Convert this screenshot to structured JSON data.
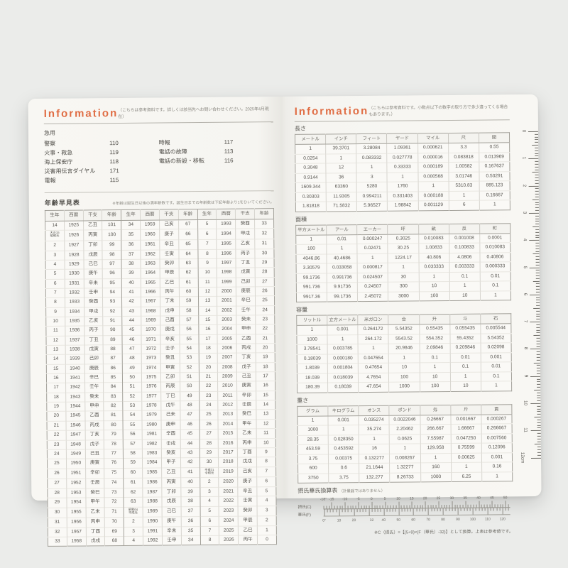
{
  "left_page": {
    "header": {
      "title": "Information",
      "note": "（こちらは参考資料です。詳しくは該当先へお問い合わせください。2025年4月現在）"
    },
    "emergency": {
      "title": "急用",
      "col1": [
        {
          "label": "警察",
          "number": "110"
        },
        {
          "label": "火事・救急",
          "number": "119"
        },
        {
          "label": "海上保安庁",
          "number": "118"
        },
        {
          "label": "災害用伝言ダイヤル",
          "number": "171"
        },
        {
          "label": "電報",
          "number": "115"
        }
      ],
      "col2": [
        {
          "label": "時報",
          "number": "117"
        },
        {
          "label": "電話の故障",
          "number": "113"
        },
        {
          "label": "電話の新設・移転",
          "number": "116"
        }
      ]
    },
    "age_table": {
      "title": "年齢早見表",
      "note": "※年齢は誕生日以後の満年齢数です。誕生日までの年齢数は下記年齢より1をひいてください。",
      "headers": [
        "生年",
        "西暦",
        "干支",
        "年齢"
      ],
      "rows": [
        [
          "14",
          "1925",
          "乙丑",
          "101",
          "34",
          "1959",
          "己亥",
          "67",
          "5",
          "1993",
          "癸酉",
          "33"
        ],
        [
          "大正15\n昭和元",
          "1926",
          "丙寅",
          "100",
          "35",
          "1960",
          "庚子",
          "66",
          "6",
          "1994",
          "甲戌",
          "32"
        ],
        [
          "2",
          "1927",
          "丁卯",
          "99",
          "36",
          "1961",
          "辛丑",
          "65",
          "7",
          "1995",
          "乙亥",
          "31"
        ],
        [
          "3",
          "1928",
          "戊辰",
          "98",
          "37",
          "1962",
          "壬寅",
          "64",
          "8",
          "1996",
          "丙子",
          "30"
        ],
        [
          "4",
          "1929",
          "己巳",
          "97",
          "38",
          "1963",
          "癸卯",
          "63",
          "9",
          "1997",
          "丁丑",
          "29"
        ],
        [
          "5",
          "1930",
          "庚午",
          "96",
          "39",
          "1964",
          "甲辰",
          "62",
          "10",
          "1998",
          "戊寅",
          "28"
        ],
        [
          "6",
          "1931",
          "辛未",
          "95",
          "40",
          "1965",
          "乙巳",
          "61",
          "11",
          "1999",
          "己卯",
          "27"
        ],
        [
          "7",
          "1932",
          "壬申",
          "94",
          "41",
          "1966",
          "丙午",
          "60",
          "12",
          "2000",
          "庚辰",
          "26"
        ],
        [
          "8",
          "1933",
          "癸酉",
          "93",
          "42",
          "1967",
          "丁未",
          "59",
          "13",
          "2001",
          "辛巳",
          "25"
        ],
        [
          "9",
          "1934",
          "甲戌",
          "92",
          "43",
          "1968",
          "戊申",
          "58",
          "14",
          "2002",
          "壬午",
          "24"
        ],
        [
          "10",
          "1935",
          "乙亥",
          "91",
          "44",
          "1969",
          "己酉",
          "57",
          "15",
          "2003",
          "癸未",
          "23"
        ],
        [
          "11",
          "1936",
          "丙子",
          "90",
          "45",
          "1970",
          "庚戌",
          "56",
          "16",
          "2004",
          "甲申",
          "22"
        ],
        [
          "12",
          "1937",
          "丁丑",
          "89",
          "46",
          "1971",
          "辛亥",
          "55",
          "17",
          "2005",
          "乙酉",
          "21"
        ],
        [
          "13",
          "1938",
          "戊寅",
          "88",
          "47",
          "1972",
          "壬子",
          "54",
          "18",
          "2006",
          "丙戌",
          "20"
        ],
        [
          "14",
          "1939",
          "己卯",
          "87",
          "48",
          "1973",
          "癸丑",
          "53",
          "19",
          "2007",
          "丁亥",
          "19"
        ],
        [
          "15",
          "1940",
          "庚辰",
          "86",
          "49",
          "1974",
          "甲寅",
          "52",
          "20",
          "2008",
          "戊子",
          "18"
        ],
        [
          "16",
          "1941",
          "辛巳",
          "85",
          "50",
          "1975",
          "乙卯",
          "51",
          "21",
          "2009",
          "己丑",
          "17"
        ],
        [
          "17",
          "1942",
          "壬午",
          "84",
          "51",
          "1976",
          "丙辰",
          "50",
          "22",
          "2010",
          "庚寅",
          "16"
        ],
        [
          "18",
          "1943",
          "癸未",
          "83",
          "52",
          "1977",
          "丁巳",
          "49",
          "23",
          "2011",
          "辛卯",
          "15"
        ],
        [
          "19",
          "1944",
          "甲申",
          "82",
          "53",
          "1978",
          "戊午",
          "48",
          "24",
          "2012",
          "壬辰",
          "14"
        ],
        [
          "20",
          "1945",
          "乙酉",
          "81",
          "54",
          "1979",
          "己未",
          "47",
          "25",
          "2013",
          "癸巳",
          "13"
        ],
        [
          "21",
          "1946",
          "丙戌",
          "80",
          "55",
          "1980",
          "庚申",
          "46",
          "26",
          "2014",
          "甲午",
          "12"
        ],
        [
          "22",
          "1947",
          "丁亥",
          "79",
          "56",
          "1981",
          "辛酉",
          "45",
          "27",
          "2015",
          "乙未",
          "11"
        ],
        [
          "23",
          "1948",
          "戊子",
          "78",
          "57",
          "1982",
          "壬戌",
          "44",
          "28",
          "2016",
          "丙申",
          "10"
        ],
        [
          "24",
          "1949",
          "己丑",
          "77",
          "58",
          "1983",
          "癸亥",
          "43",
          "29",
          "2017",
          "丁酉",
          "9"
        ],
        [
          "25",
          "1950",
          "庚寅",
          "76",
          "59",
          "1984",
          "甲子",
          "42",
          "30",
          "2018",
          "戊戌",
          "8"
        ],
        [
          "26",
          "1951",
          "辛卯",
          "75",
          "60",
          "1985",
          "乙丑",
          "41",
          "平成31\n令和元",
          "2019",
          "己亥",
          "7"
        ],
        [
          "27",
          "1952",
          "壬辰",
          "74",
          "61",
          "1986",
          "丙寅",
          "40",
          "2",
          "2020",
          "庚子",
          "6"
        ],
        [
          "28",
          "1953",
          "癸巳",
          "73",
          "62",
          "1987",
          "丁卯",
          "39",
          "3",
          "2021",
          "辛丑",
          "5"
        ],
        [
          "29",
          "1954",
          "甲午",
          "72",
          "63",
          "1988",
          "戊辰",
          "38",
          "4",
          "2022",
          "壬寅",
          "4"
        ],
        [
          "30",
          "1955",
          "乙未",
          "71",
          "昭和64\n平成元",
          "1989",
          "己巳",
          "37",
          "5",
          "2023",
          "癸卯",
          "3"
        ],
        [
          "31",
          "1956",
          "丙申",
          "70",
          "2",
          "1990",
          "庚午",
          "36",
          "6",
          "2024",
          "甲辰",
          "2"
        ],
        [
          "32",
          "1957",
          "丁酉",
          "69",
          "3",
          "1991",
          "辛未",
          "35",
          "7",
          "2025",
          "乙巳",
          "1"
        ],
        [
          "33",
          "1958",
          "戊戌",
          "68",
          "4",
          "1992",
          "壬申",
          "34",
          "8",
          "2026",
          "丙午",
          "0"
        ]
      ]
    }
  },
  "right_page": {
    "header": {
      "title": "Information",
      "note": "（こちらは参考資料です。小数点以下の数字の取り方で多少違ってくる場合もあります。）"
    },
    "conversion_tables": [
      {
        "title": "長さ",
        "headers": [
          "メートル",
          "インチ",
          "フィート",
          "ヤード",
          "マイル",
          "尺",
          "間"
        ],
        "rows": [
          [
            "1",
            "39.3701",
            "3.28084",
            "1.09361",
            "0.000621",
            "3.3",
            "0.55"
          ],
          [
            "0.0254",
            "1",
            "0.083332",
            "0.027778",
            "0.000016",
            "0.083818",
            "0.013969"
          ],
          [
            "0.3048",
            "12",
            "1",
            "0.33333",
            "0.000189",
            "1.00582",
            "0.167637"
          ],
          [
            "0.9144",
            "36",
            "3",
            "1",
            "0.000568",
            "3.01746",
            "0.50291"
          ],
          [
            "1609.344",
            "63360",
            "5280",
            "1760",
            "1",
            "5310.83",
            "885.123"
          ],
          [
            "0.30303",
            "11.9305",
            "0.994211",
            "0.331403",
            "0.000188",
            "1",
            "0.16667"
          ],
          [
            "1.81818",
            "71.5832",
            "5.96527",
            "1.98842",
            "0.001129",
            "6",
            "1"
          ]
        ]
      },
      {
        "title": "面積",
        "headers": [
          "平方メートル",
          "アール",
          "エーカー",
          "坪",
          "畝",
          "反",
          "町"
        ],
        "rows": [
          [
            "1",
            "0.01",
            "0.000247",
            "0.3025",
            "0.010083",
            "0.001008",
            "0.0001"
          ],
          [
            "100",
            "1",
            "0.02471",
            "30.25",
            "1.00833",
            "0.100833",
            "0.010083"
          ],
          [
            "4046.86",
            "40.4686",
            "1",
            "1224.17",
            "40.806",
            "4.0806",
            "0.40806"
          ],
          [
            "3.30579",
            "0.033058",
            "0.000817",
            "1",
            "0.033333",
            "0.003333",
            "0.000333"
          ],
          [
            "99.1736",
            "0.991736",
            "0.024507",
            "30",
            "1",
            "0.1",
            "0.01"
          ],
          [
            "991.736",
            "9.91736",
            "0.24507",
            "300",
            "10",
            "1",
            "0.1"
          ],
          [
            "9917.36",
            "99.1736",
            "2.45072",
            "3000",
            "100",
            "10",
            "1"
          ]
        ]
      },
      {
        "title": "容量",
        "headers": [
          "リットル",
          "立方メートル",
          "米ガロン",
          "合",
          "升",
          "斗",
          "石"
        ],
        "rows": [
          [
            "1",
            "0.001",
            "0.264172",
            "5.54352",
            "0.55435",
            "0.055435",
            "0.005544"
          ],
          [
            "1000",
            "1",
            "264.172",
            "5543.52",
            "554.352",
            "55.4352",
            "5.54352"
          ],
          [
            "3.78541",
            "0.003785",
            "1",
            "20.9846",
            "2.09846",
            "0.209846",
            "0.02098"
          ],
          [
            "0.18039",
            "0.000180",
            "0.047654",
            "1",
            "0.1",
            "0.01",
            "0.001"
          ],
          [
            "1.8039",
            "0.001804",
            "0.47654",
            "10",
            "1",
            "0.1",
            "0.01"
          ],
          [
            "18.039",
            "0.018039",
            "4.7654",
            "100",
            "10",
            "1",
            "0.1"
          ],
          [
            "180.39",
            "0.18039",
            "47.654",
            "1000",
            "100",
            "10",
            "1"
          ]
        ]
      },
      {
        "title": "重さ",
        "headers": [
          "グラム",
          "キログラム",
          "オンス",
          "ポンド",
          "匁",
          "斤",
          "貫"
        ],
        "rows": [
          [
            "1",
            "0.001",
            "0.035274",
            "0.0022046",
            "0.26667",
            "0.001667",
            "0.000267"
          ],
          [
            "1000",
            "1",
            "35.274",
            "2.20462",
            "266.667",
            "1.66667",
            "0.266667"
          ],
          [
            "28.35",
            "0.028350",
            "1",
            "0.0625",
            "7.55987",
            "0.047250",
            "0.007560"
          ],
          [
            "453.59",
            "0.453592",
            "16",
            "1",
            "129.958",
            "0.75599",
            "0.12096"
          ],
          [
            "3.75",
            "0.00375",
            "0.132277",
            "0.008267",
            "1",
            "0.00625",
            "0.001"
          ],
          [
            "600",
            "0.6",
            "21.1644",
            "1.32277",
            "160",
            "1",
            "0.16"
          ],
          [
            "3750",
            "3.75",
            "132.277",
            "8.26733",
            "1000",
            "6.25",
            "1"
          ]
        ]
      }
    ],
    "temp_chart": {
      "title": "摂氏華氏換算表",
      "title_note": "（計量器ではありません）",
      "celsius_label": "摂氏(C)",
      "fahrenheit_label": "華氏(F)",
      "celsius_tick_labels": [
        "-18°",
        "-15",
        "-10",
        "-5",
        "0",
        "5",
        "10",
        "15",
        "20",
        "25",
        "30",
        "35",
        "40",
        "45",
        "50"
      ],
      "fahrenheit_tick_labels": [
        "0°",
        "10",
        "20",
        "32",
        "40",
        "50",
        "60",
        "70",
        "80",
        "90",
        "100",
        "110",
        "120"
      ],
      "note": "※C（摂氏）=【(5÷9)×(F（華氏）-32)】として換算。上表は参考値です。"
    },
    "ruler": {
      "unit_labels": [
        "0",
        "1",
        "2",
        "3",
        "4",
        "5",
        "6",
        "7",
        "8",
        "9",
        "10",
        "11",
        "12cm"
      ]
    }
  }
}
